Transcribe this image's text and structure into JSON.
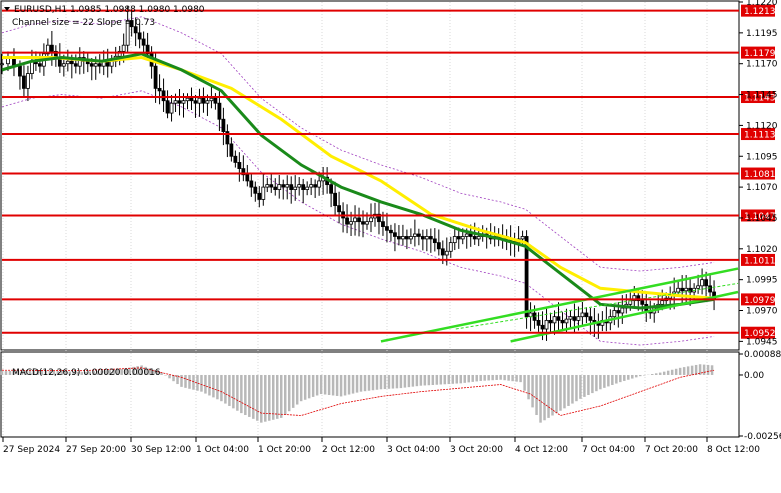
{
  "header": {
    "symbol_line": "EURUSD,H1  1.0985 1.0988 1.0980 1.0980",
    "channel_line": "Channel size = 22 Slope = 0.73"
  },
  "macd": {
    "label": "MACD(12,26,9) 0.00020 0.00016",
    "ticks": [
      "0.00088",
      "0.00",
      "-0.00256"
    ]
  },
  "chart_data": {
    "type": "candlestick",
    "symbol": "EURUSD",
    "timeframe": "H1",
    "ylim": [
      1.0938,
      1.122
    ],
    "price_ticks": [
      "1.1220",
      "1.1195",
      "1.1170",
      "1.1145",
      "1.1120",
      "1.1095",
      "1.1070",
      "1.1045",
      "1.1020",
      "1.0995",
      "1.0970",
      "1.0945"
    ],
    "x_labels": [
      "27 Sep 2024",
      "27 Sep 20:00",
      "30 Sep 12:00",
      "1 Oct 04:00",
      "1 Oct 20:00",
      "2 Oct 12:00",
      "3 Oct 04:00",
      "3 Oct 20:00",
      "4 Oct 12:00",
      "7 Oct 04:00",
      "7 Oct 20:00",
      "8 Oct 12:00"
    ],
    "levels": [
      {
        "label": "1.1213",
        "value": 1.1213
      },
      {
        "label": "1.1179",
        "value": 1.1179
      },
      {
        "label": "1.1143",
        "value": 1.1143
      },
      {
        "label": "1.1113",
        "value": 1.1113
      },
      {
        "label": "1.1081",
        "value": 1.1081
      },
      {
        "label": "1.1047",
        "value": 1.1047
      },
      {
        "label": "1.1011",
        "value": 1.1011
      },
      {
        "label": "1.0979",
        "value": 1.0979
      },
      {
        "label": "1.0952",
        "value": 1.0952
      }
    ],
    "level_color": "#e00000",
    "close_path": [
      [
        0,
        1.117
      ],
      [
        6,
        1.1175
      ],
      [
        12,
        1.1168
      ],
      [
        18,
        1.116
      ],
      [
        22,
        1.115
      ],
      [
        26,
        1.1162
      ],
      [
        30,
        1.1172
      ],
      [
        34,
        1.117
      ],
      [
        38,
        1.1168
      ],
      [
        42,
        1.1178
      ],
      [
        46,
        1.1185
      ],
      [
        50,
        1.118
      ],
      [
        54,
        1.1175
      ],
      [
        58,
        1.1168
      ],
      [
        62,
        1.117
      ],
      [
        66,
        1.1172
      ],
      [
        70,
        1.117
      ],
      [
        74,
        1.1168
      ],
      [
        78,
        1.1175
      ],
      [
        82,
        1.1172
      ],
      [
        86,
        1.117
      ],
      [
        90,
        1.1168
      ],
      [
        94,
        1.117
      ],
      [
        98,
        1.1168
      ],
      [
        102,
        1.1172
      ],
      [
        106,
        1.1168
      ],
      [
        110,
        1.1172
      ],
      [
        114,
        1.1176
      ],
      [
        118,
        1.118
      ],
      [
        122,
        1.1185
      ],
      [
        126,
        1.1205
      ],
      [
        130,
        1.12
      ],
      [
        134,
        1.1195
      ],
      [
        138,
        1.119
      ],
      [
        142,
        1.1185
      ],
      [
        146,
        1.1178
      ],
      [
        150,
        1.1168
      ],
      [
        154,
        1.115
      ],
      [
        158,
        1.1148
      ],
      [
        162,
        1.114
      ],
      [
        166,
        1.113
      ],
      [
        170,
        1.1138
      ],
      [
        174,
        1.114
      ],
      [
        178,
        1.1138
      ],
      [
        182,
        1.114
      ],
      [
        186,
        1.1142
      ],
      [
        190,
        1.114
      ],
      [
        194,
        1.1138
      ],
      [
        198,
        1.1142
      ],
      [
        202,
        1.1138
      ],
      [
        206,
        1.114
      ],
      [
        210,
        1.1142
      ],
      [
        214,
        1.1138
      ],
      [
        218,
        1.1125
      ],
      [
        222,
        1.1115
      ],
      [
        226,
        1.1105
      ],
      [
        230,
        1.1095
      ],
      [
        234,
        1.109
      ],
      [
        238,
        1.1085
      ],
      [
        242,
        1.108
      ],
      [
        246,
        1.1075
      ],
      [
        250,
        1.107
      ],
      [
        254,
        1.1065
      ],
      [
        258,
        1.106
      ],
      [
        262,
        1.107
      ],
      [
        266,
        1.1072
      ],
      [
        270,
        1.107
      ],
      [
        274,
        1.1068
      ],
      [
        278,
        1.1072
      ],
      [
        282,
        1.107
      ],
      [
        286,
        1.1072
      ],
      [
        290,
        1.1068
      ],
      [
        294,
        1.107
      ],
      [
        298,
        1.1072
      ],
      [
        302,
        1.1068
      ],
      [
        306,
        1.107
      ],
      [
        310,
        1.1072
      ],
      [
        314,
        1.107
      ],
      [
        318,
        1.1075
      ],
      [
        322,
        1.1078
      ],
      [
        326,
        1.1072
      ],
      [
        330,
        1.1065
      ],
      [
        334,
        1.1055
      ],
      [
        338,
        1.105
      ],
      [
        342,
        1.1045
      ],
      [
        346,
        1.104
      ],
      [
        350,
        1.1042
      ],
      [
        354,
        1.1045
      ],
      [
        358,
        1.1042
      ],
      [
        362,
        1.104
      ],
      [
        366,
        1.1042
      ],
      [
        370,
        1.1045
      ],
      [
        374,
        1.1048
      ],
      [
        378,
        1.1042
      ],
      [
        382,
        1.1038
      ],
      [
        386,
        1.1035
      ],
      [
        390,
        1.1033
      ],
      [
        394,
        1.103
      ],
      [
        398,
        1.1028
      ],
      [
        402,
        1.103
      ],
      [
        406,
        1.1028
      ],
      [
        410,
        1.103
      ],
      [
        414,
        1.1032
      ],
      [
        418,
        1.103
      ],
      [
        422,
        1.1028
      ],
      [
        426,
        1.103
      ],
      [
        430,
        1.1028
      ],
      [
        434,
        1.1025
      ],
      [
        438,
        1.102
      ],
      [
        442,
        1.1015
      ],
      [
        446,
        1.1018
      ],
      [
        450,
        1.1025
      ],
      [
        454,
        1.103
      ],
      [
        458,
        1.1028
      ],
      [
        462,
        1.103
      ],
      [
        466,
        1.1032
      ],
      [
        470,
        1.103
      ],
      [
        474,
        1.1028
      ],
      [
        478,
        1.103
      ],
      [
        482,
        1.1032
      ],
      [
        486,
        1.103
      ],
      [
        490,
        1.1028
      ],
      [
        494,
        1.103
      ],
      [
        498,
        1.1028
      ],
      [
        502,
        1.103
      ],
      [
        506,
        1.1028
      ],
      [
        510,
        1.1026
      ],
      [
        514,
        1.1025
      ],
      [
        518,
        1.1028
      ],
      [
        522,
        1.103
      ],
      [
        526,
        1.0965
      ],
      [
        530,
        1.0968
      ],
      [
        534,
        1.0962
      ],
      [
        538,
        1.0958
      ],
      [
        542,
        1.0955
      ],
      [
        546,
        1.0962
      ],
      [
        550,
        1.096
      ],
      [
        554,
        1.0965
      ],
      [
        558,
        1.0962
      ],
      [
        562,
        1.096
      ],
      [
        566,
        1.0963
      ],
      [
        570,
        1.0965
      ],
      [
        574,
        1.0962
      ],
      [
        578,
        1.0965
      ],
      [
        582,
        1.0968
      ],
      [
        586,
        1.0965
      ],
      [
        590,
        1.0962
      ],
      [
        594,
        1.096
      ],
      [
        598,
        1.0958
      ],
      [
        602,
        1.0962
      ],
      [
        606,
        1.096
      ],
      [
        610,
        1.0965
      ],
      [
        614,
        1.097
      ],
      [
        618,
        1.0968
      ],
      [
        622,
        1.0972
      ],
      [
        626,
        1.0975
      ],
      [
        630,
        1.0978
      ],
      [
        634,
        1.0982
      ],
      [
        638,
        1.0978
      ],
      [
        642,
        1.0975
      ],
      [
        646,
        1.097
      ],
      [
        650,
        1.0968
      ],
      [
        654,
        1.0972
      ],
      [
        658,
        1.0975
      ],
      [
        662,
        1.0978
      ],
      [
        666,
        1.098
      ],
      [
        670,
        1.0982
      ],
      [
        674,
        1.0985
      ],
      [
        678,
        1.0988
      ],
      [
        682,
        1.0986
      ],
      [
        686,
        1.0988
      ],
      [
        690,
        1.0985
      ],
      [
        694,
        1.0988
      ],
      [
        698,
        1.099
      ],
      [
        702,
        1.0995
      ],
      [
        706,
        1.099
      ],
      [
        710,
        1.0985
      ],
      [
        714,
        1.098
      ]
    ],
    "ma_yellow": [
      [
        0,
        1.1175
      ],
      [
        50,
        1.1175
      ],
      [
        100,
        1.1172
      ],
      [
        140,
        1.1175
      ],
      [
        180,
        1.1165
      ],
      [
        230,
        1.115
      ],
      [
        280,
        1.1125
      ],
      [
        330,
        1.1095
      ],
      [
        380,
        1.1075
      ],
      [
        430,
        1.1048
      ],
      [
        480,
        1.1035
      ],
      [
        525,
        1.1025
      ],
      [
        560,
        1.1005
      ],
      [
        600,
        1.0988
      ],
      [
        640,
        1.0985
      ],
      [
        680,
        1.0982
      ],
      [
        714,
        1.098
      ]
    ],
    "ma_green": [
      [
        0,
        1.1165
      ],
      [
        30,
        1.1172
      ],
      [
        60,
        1.1175
      ],
      [
        100,
        1.1172
      ],
      [
        140,
        1.1178
      ],
      [
        180,
        1.1165
      ],
      [
        220,
        1.1148
      ],
      [
        260,
        1.1112
      ],
      [
        300,
        1.1088
      ],
      [
        340,
        1.107
      ],
      [
        380,
        1.1058
      ],
      [
        420,
        1.1048
      ],
      [
        460,
        1.1035
      ],
      [
        500,
        1.1028
      ],
      [
        525,
        1.1022
      ],
      [
        560,
        1.1
      ],
      [
        600,
        1.0975
      ],
      [
        640,
        1.0972
      ],
      [
        680,
        1.0975
      ],
      [
        714,
        1.0979
      ]
    ],
    "channel_lines": [
      {
        "from": [
          380,
          1.0945
        ],
        "to": [
          738,
          1.1004
        ]
      },
      {
        "from": [
          510,
          1.0945
        ],
        "to": [
          738,
          1.0985
        ]
      },
      {
        "from": [
          455,
          1.0955
        ],
        "to": [
          738,
          1.0992
        ]
      }
    ],
    "colors": {
      "ma_yellow": "#ffee00",
      "ma_green": "#1a8a1a",
      "channel": "#33dd22",
      "envelope": "#a040c0",
      "candle": "#000000"
    },
    "macd_hist": [
      [
        0,
        0.00016
      ],
      [
        40,
        0.0002
      ],
      [
        80,
        0.00012
      ],
      [
        120,
        0.00025
      ],
      [
        140,
        0.0004
      ],
      [
        160,
        0.0001
      ],
      [
        180,
        -0.0005
      ],
      [
        200,
        -0.0007
      ],
      [
        220,
        -0.0011
      ],
      [
        240,
        -0.0016
      ],
      [
        260,
        -0.002
      ],
      [
        280,
        -0.0018
      ],
      [
        300,
        -0.0011
      ],
      [
        320,
        -0.0008
      ],
      [
        340,
        -0.0009
      ],
      [
        360,
        -0.0007
      ],
      [
        380,
        -0.0006
      ],
      [
        400,
        -0.00055
      ],
      [
        420,
        -0.00045
      ],
      [
        440,
        -0.0004
      ],
      [
        460,
        -0.00035
      ],
      [
        480,
        -0.00025
      ],
      [
        500,
        -0.0002
      ],
      [
        520,
        -0.0003
      ],
      [
        530,
        -0.0012
      ],
      [
        540,
        -0.002
      ],
      [
        560,
        -0.0015
      ],
      [
        580,
        -0.001
      ],
      [
        600,
        -0.0006
      ],
      [
        620,
        -0.0003
      ],
      [
        640,
        -5e-05
      ],
      [
        660,
        0.0001
      ],
      [
        680,
        0.0003
      ],
      [
        700,
        0.00045
      ],
      [
        714,
        0.0004
      ]
    ],
    "macd_signal": [
      [
        0,
        0.0002
      ],
      [
        80,
        0.00018
      ],
      [
        140,
        0.0003
      ],
      [
        180,
        -0.0001
      ],
      [
        220,
        -0.0007
      ],
      [
        260,
        -0.0016
      ],
      [
        300,
        -0.0017
      ],
      [
        340,
        -0.0012
      ],
      [
        380,
        -0.0009
      ],
      [
        420,
        -0.0007
      ],
      [
        460,
        -0.00055
      ],
      [
        500,
        -0.0004
      ],
      [
        530,
        -0.0008
      ],
      [
        560,
        -0.0017
      ],
      [
        600,
        -0.0013
      ],
      [
        640,
        -0.0007
      ],
      [
        680,
        -0.0001
      ],
      [
        714,
        0.0002
      ]
    ],
    "macd_ylim": [
      -0.00256,
      0.00088
    ]
  }
}
